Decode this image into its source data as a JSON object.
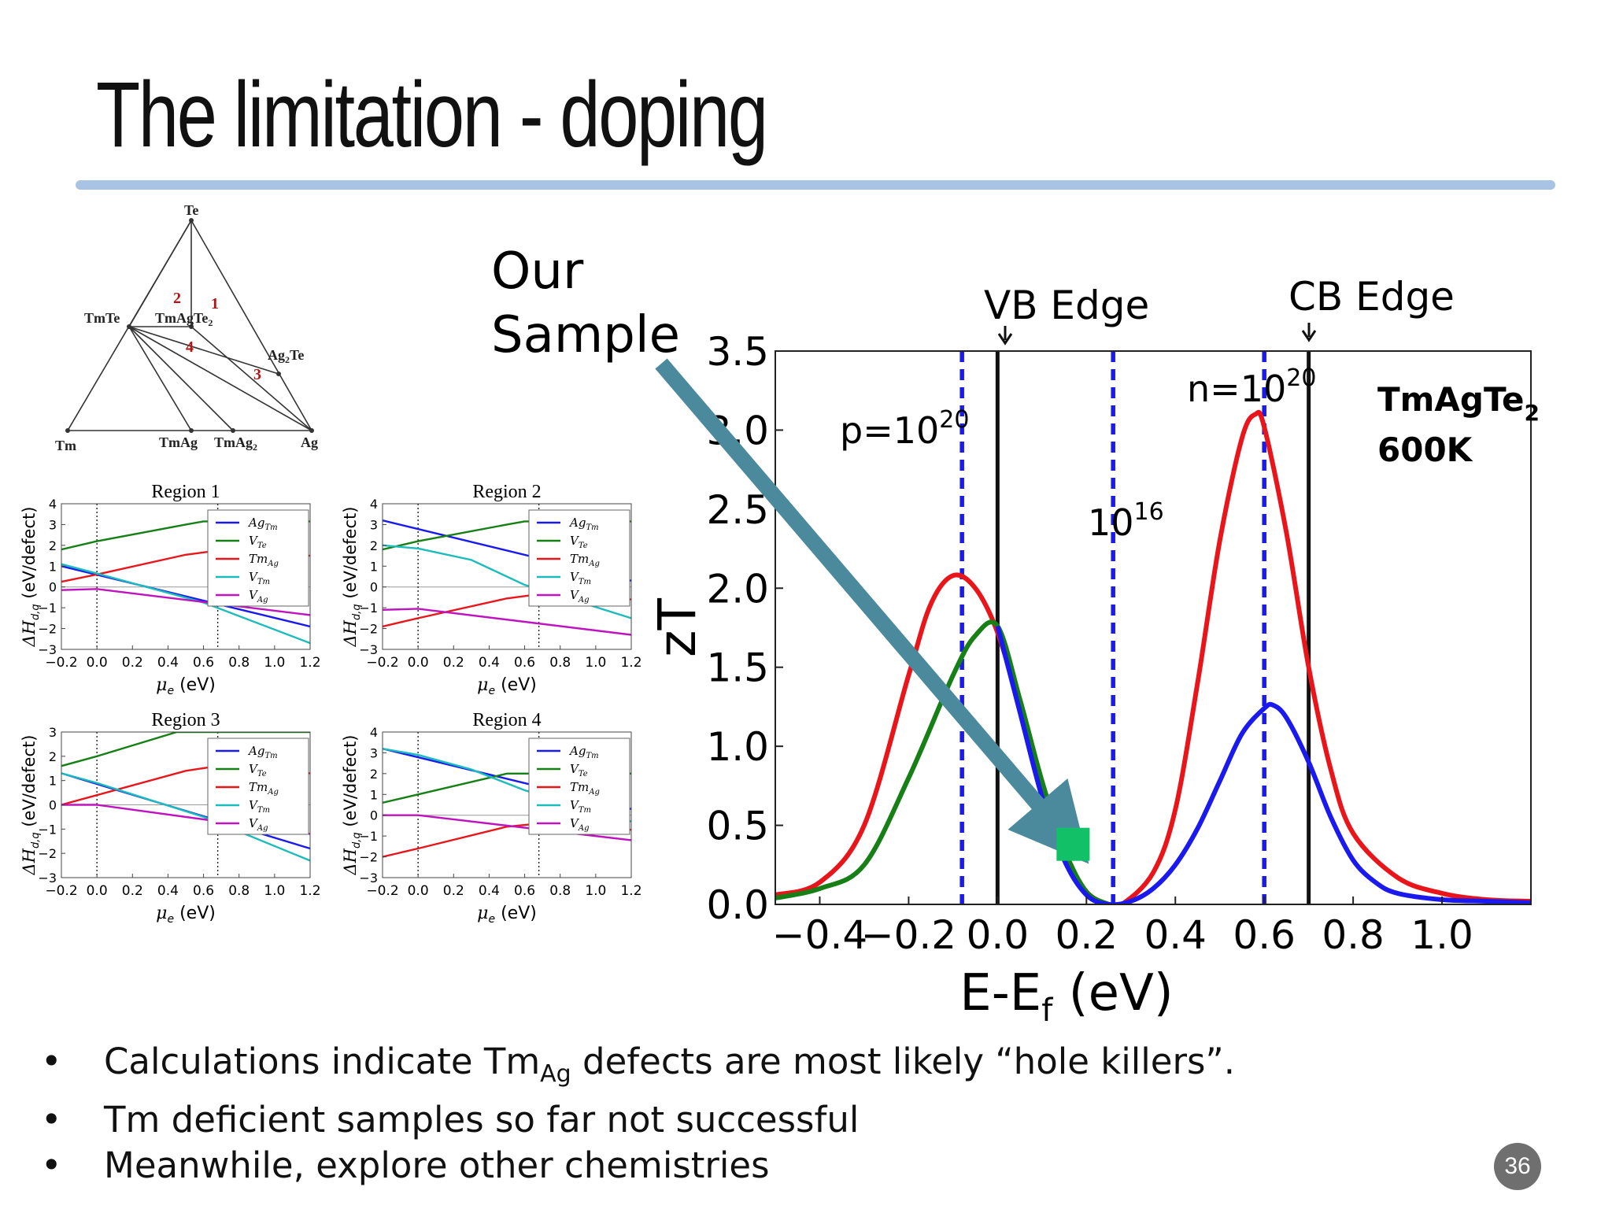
{
  "slide": {
    "title": "The limitation - doping",
    "page_number": "36",
    "bullets": [
      {
        "pre": "Calculations indicate Tm",
        "sub": "Ag",
        "post": " defects are most likely “hole killers”."
      },
      {
        "pre": "Tm deficient samples so far not successful",
        "sub": "",
        "post": ""
      },
      {
        "pre": "Meanwhile, explore other chemistries",
        "sub": "",
        "post": ""
      }
    ]
  },
  "phase_diagram": {
    "vertices": [
      "Te",
      "Tm",
      "Ag"
    ],
    "phases": [
      "TmTe",
      "TmAgTe",
      "2",
      "Ag",
      "2",
      "Te",
      "TmAg",
      "TmAg",
      "2"
    ],
    "labels": {
      "te": "Te",
      "tm": "Tm",
      "ag": "Ag",
      "tmte": "TmTe",
      "tmagte2": "TmAgTe",
      "tmagte2_sub": "2",
      "ag2te": "Ag",
      "ag2te_sub": "2",
      "ag2te_post": "Te",
      "tmag": "TmAg",
      "tmag2": "TmAg",
      "tmag2_sub": "2"
    },
    "region_numbers": [
      "1",
      "2",
      "3",
      "4"
    ]
  },
  "colors": {
    "red": "#e8161b",
    "blue": "#1a1aee",
    "green": "#168016",
    "cyan": "#1cbcbc",
    "magenta": "#c013c0",
    "arrow": "#4a8a9c",
    "sample": "#12c068",
    "dashed": "#1a1aee",
    "rule": "#a9c3e4"
  },
  "chart_data": [
    {
      "type": "line",
      "title": "",
      "xlabel": "E-E",
      "xlabel_sub": "f",
      "xlabel_post": " (eV)",
      "ylabel": "zT",
      "xlim": [
        -0.5,
        1.2
      ],
      "ylim": [
        0.0,
        3.5
      ],
      "xticks": [
        -0.4,
        -0.2,
        0.0,
        0.2,
        0.4,
        0.6,
        0.8,
        1.0
      ],
      "xtick_labels": [
        "−0.4",
        "−0.2",
        "0.0",
        "0.2",
        "0.4",
        "0.6",
        "0.8",
        "1.0"
      ],
      "yticks": [
        0.0,
        0.5,
        1.0,
        1.5,
        2.0,
        2.5,
        3.0,
        3.5
      ],
      "ytick_labels": [
        "0.0",
        "0.5",
        "1.0",
        "1.5",
        "2.0",
        "2.5",
        "3.0",
        "3.5"
      ],
      "series": [
        {
          "color": "red",
          "x": [
            -0.5,
            -0.4,
            -0.3,
            -0.2,
            -0.15,
            -0.1,
            -0.05,
            0.0,
            0.05,
            0.1,
            0.15,
            0.2,
            0.25,
            0.28,
            0.35,
            0.4,
            0.45,
            0.5,
            0.55,
            0.58,
            0.6,
            0.65,
            0.7,
            0.75,
            0.8,
            0.9,
            1.0,
            1.1,
            1.2
          ],
          "y": [
            0.06,
            0.14,
            0.5,
            1.45,
            1.9,
            2.08,
            2.0,
            1.72,
            1.25,
            0.72,
            0.32,
            0.08,
            0.0,
            0.0,
            0.2,
            0.6,
            1.4,
            2.3,
            2.95,
            3.1,
            3.02,
            2.35,
            1.5,
            0.85,
            0.45,
            0.17,
            0.07,
            0.03,
            0.02
          ]
        },
        {
          "color": "green",
          "x": [
            -0.5,
            -0.4,
            -0.3,
            -0.2,
            -0.1,
            -0.05,
            0.0,
            0.05,
            0.1,
            0.15,
            0.2,
            0.25
          ],
          "y": [
            0.04,
            0.1,
            0.25,
            0.8,
            1.45,
            1.7,
            1.76,
            1.3,
            0.78,
            0.35,
            0.08,
            0.0
          ]
        },
        {
          "color": "blue",
          "x": [
            0.0,
            0.05,
            0.1,
            0.15,
            0.2,
            0.25,
            0.3,
            0.35,
            0.4,
            0.45,
            0.5,
            0.55,
            0.6,
            0.62,
            0.65,
            0.7,
            0.75,
            0.8,
            0.85,
            0.9,
            1.0,
            1.1,
            1.2
          ],
          "y": [
            1.76,
            1.22,
            0.68,
            0.28,
            0.06,
            0.0,
            0.02,
            0.1,
            0.25,
            0.48,
            0.78,
            1.08,
            1.24,
            1.26,
            1.18,
            0.9,
            0.55,
            0.28,
            0.14,
            0.07,
            0.03,
            0.02,
            0.01
          ]
        }
      ],
      "vlines": [
        {
          "x": -0.08,
          "style": "dashed"
        },
        {
          "x": 0.0,
          "style": "solid"
        },
        {
          "x": 0.26,
          "style": "dashed"
        },
        {
          "x": 0.6,
          "style": "dashed"
        },
        {
          "x": 0.7,
          "style": "solid"
        }
      ],
      "annotations": {
        "vb_edge": "VB Edge",
        "cb_edge": "CB Edge",
        "p_label": "p=10",
        "p_exp": "20",
        "n_label": "n=10",
        "n_exp": "20",
        "mid_label": "10",
        "mid_exp": "16",
        "material": "TmAgTe",
        "material_sub": "2",
        "temperature": "600K",
        "our_sample_1": "Our",
        "our_sample_2": "Sample"
      },
      "sample_point": {
        "x": 0.17,
        "y": 0.38
      }
    },
    {
      "type": "line",
      "title": "Region 1",
      "xlabel": "μ",
      "xlabel_sub": "e",
      "xlabel_post": " (eV)",
      "ylabel": "ΔH",
      "ylabel_sub": "d,q",
      "ylabel_post": " (eV/defect)",
      "xlim": [
        -0.2,
        1.2
      ],
      "ylim": [
        -3,
        4
      ],
      "xtick_labels": [
        "−0.2",
        "0.0",
        "0.2",
        "0.4",
        "0.6",
        "0.8",
        "1.0",
        "1.2"
      ],
      "ytick_labels": [
        "−3",
        "−2",
        "−1",
        "0",
        "1",
        "2",
        "3",
        "4"
      ],
      "series": [
        {
          "name": "Ag",
          "sub": "Tm",
          "color": "blue",
          "x": [
            -0.2,
            1.2
          ],
          "y": [
            1.0,
            -1.9
          ]
        },
        {
          "name": "V",
          "sub": "Te",
          "color": "green",
          "x": [
            -0.2,
            0.0,
            0.5,
            0.6,
            1.2
          ],
          "y": [
            1.8,
            2.2,
            3.0,
            3.15,
            3.15
          ]
        },
        {
          "name": "Tm",
          "sub": "Ag",
          "color": "red",
          "x": [
            -0.2,
            0.0,
            0.5,
            0.68,
            1.2
          ],
          "y": [
            0.25,
            0.6,
            1.55,
            1.75,
            1.5
          ]
        },
        {
          "name": "V",
          "sub": "Tm",
          "color": "cyan",
          "x": [
            -0.2,
            0.0,
            0.6,
            1.2
          ],
          "y": [
            1.1,
            0.65,
            -0.75,
            -2.7
          ]
        },
        {
          "name": "V",
          "sub": "Ag",
          "color": "magenta",
          "x": [
            -0.2,
            0.0,
            1.2
          ],
          "y": [
            -0.15,
            -0.1,
            -1.35
          ]
        }
      ],
      "vlines": [
        0.0,
        0.68
      ]
    },
    {
      "type": "line",
      "title": "Region 2",
      "xlabel": "μ",
      "xlabel_sub": "e",
      "xlabel_post": " (eV)",
      "ylabel": "ΔH",
      "ylabel_sub": "d,q",
      "ylabel_post": " (eV/defect)",
      "xlim": [
        -0.2,
        1.2
      ],
      "ylim": [
        -3,
        4
      ],
      "xtick_labels": [
        "−0.2",
        "0.0",
        "0.2",
        "0.4",
        "0.6",
        "0.8",
        "1.0",
        "1.2"
      ],
      "ytick_labels": [
        "−3",
        "−2",
        "−1",
        "0",
        "1",
        "2",
        "3",
        "4"
      ],
      "series": [
        {
          "name": "Ag",
          "sub": "Tm",
          "color": "blue",
          "x": [
            -0.2,
            1.2
          ],
          "y": [
            3.2,
            0.3
          ]
        },
        {
          "name": "V",
          "sub": "Te",
          "color": "green",
          "x": [
            -0.2,
            0.0,
            0.5,
            0.6,
            1.2
          ],
          "y": [
            1.8,
            2.2,
            3.0,
            3.15,
            3.15
          ]
        },
        {
          "name": "Tm",
          "sub": "Ag",
          "color": "red",
          "x": [
            -0.2,
            0.0,
            0.5,
            0.68,
            1.2
          ],
          "y": [
            -1.9,
            -1.5,
            -0.55,
            -0.35,
            -0.6
          ]
        },
        {
          "name": "V",
          "sub": "Tm",
          "color": "cyan",
          "x": [
            -0.2,
            0.0,
            0.3,
            0.6,
            1.2
          ],
          "y": [
            2.0,
            1.85,
            1.3,
            0.1,
            -1.5
          ]
        },
        {
          "name": "V",
          "sub": "Ag",
          "color": "magenta",
          "x": [
            -0.2,
            0.0,
            1.2
          ],
          "y": [
            -1.1,
            -1.05,
            -2.3
          ]
        }
      ],
      "vlines": [
        0.0,
        0.68
      ]
    },
    {
      "type": "line",
      "title": "Region 3",
      "xlabel": "μ",
      "xlabel_sub": "e",
      "xlabel_post": " (eV)",
      "ylabel": "ΔH",
      "ylabel_sub": "d,q",
      "ylabel_post": " (eV/defect)",
      "xlim": [
        -0.2,
        1.2
      ],
      "ylim": [
        -3,
        3
      ],
      "xtick_labels": [
        "−0.2",
        "0.0",
        "0.2",
        "0.4",
        "0.6",
        "0.8",
        "1.0",
        "1.2"
      ],
      "ytick_labels": [
        "−3",
        "−2",
        "−1",
        "0",
        "1",
        "2",
        "3"
      ],
      "series": [
        {
          "name": "Ag",
          "sub": "Tm",
          "color": "blue",
          "x": [
            -0.2,
            1.2
          ],
          "y": [
            1.3,
            -1.8
          ]
        },
        {
          "name": "V",
          "sub": "Te",
          "color": "green",
          "x": [
            -0.2,
            0.0,
            0.45,
            1.2
          ],
          "y": [
            1.6,
            2.0,
            3.0,
            3.0
          ]
        },
        {
          "name": "Tm",
          "sub": "Ag",
          "color": "red",
          "x": [
            -0.2,
            0.0,
            0.5,
            0.68,
            1.2
          ],
          "y": [
            0.0,
            0.4,
            1.4,
            1.6,
            1.3
          ]
        },
        {
          "name": "V",
          "sub": "Tm",
          "color": "cyan",
          "x": [
            -0.2,
            0.0,
            0.6,
            1.2
          ],
          "y": [
            1.3,
            0.9,
            -0.5,
            -2.3
          ]
        },
        {
          "name": "V",
          "sub": "Ag",
          "color": "magenta",
          "x": [
            -0.2,
            0.0,
            1.2
          ],
          "y": [
            0.0,
            0.0,
            -1.2
          ]
        }
      ],
      "vlines": [
        0.0,
        0.68
      ]
    },
    {
      "type": "line",
      "title": "Region 4",
      "xlabel": "μ",
      "xlabel_sub": "e",
      "xlabel_post": " (eV)",
      "ylabel": "ΔH",
      "ylabel_sub": "d,q",
      "ylabel_post": " (eV/defect)",
      "xlim": [
        -0.2,
        1.2
      ],
      "ylim": [
        -3,
        4
      ],
      "xtick_labels": [
        "−0.2",
        "0.0",
        "0.2",
        "0.4",
        "0.6",
        "0.8",
        "1.0",
        "1.2"
      ],
      "ytick_labels": [
        "−3",
        "−2",
        "−1",
        "0",
        "1",
        "2",
        "3",
        "4"
      ],
      "series": [
        {
          "name": "Ag",
          "sub": "Tm",
          "color": "blue",
          "x": [
            -0.2,
            1.2
          ],
          "y": [
            3.2,
            0.3
          ]
        },
        {
          "name": "V",
          "sub": "Te",
          "color": "green",
          "x": [
            -0.2,
            0.0,
            0.5,
            0.6,
            1.2
          ],
          "y": [
            0.6,
            1.0,
            2.0,
            2.0,
            2.0
          ]
        },
        {
          "name": "Tm",
          "sub": "Ag",
          "color": "red",
          "x": [
            -0.2,
            0.0,
            0.5,
            0.68,
            1.2
          ],
          "y": [
            -2.0,
            -1.6,
            -0.55,
            -0.4,
            -0.7
          ]
        },
        {
          "name": "V",
          "sub": "Tm",
          "color": "cyan",
          "x": [
            -0.2,
            0.0,
            0.3,
            0.6,
            1.2
          ],
          "y": [
            3.2,
            2.9,
            2.2,
            1.2,
            -0.3
          ]
        },
        {
          "name": "V",
          "sub": "Ag",
          "color": "magenta",
          "x": [
            -0.2,
            0.0,
            1.2
          ],
          "y": [
            0.0,
            0.0,
            -1.2
          ]
        }
      ],
      "vlines": [
        0.0,
        0.68
      ]
    }
  ]
}
